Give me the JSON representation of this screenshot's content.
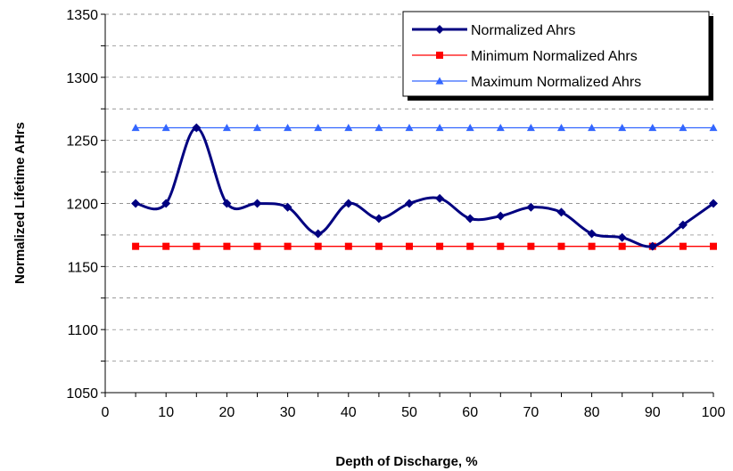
{
  "chart_data": {
    "type": "line",
    "xlabel": "Depth of Discharge, %",
    "ylabel": "Normalized Lifetime AHrs",
    "xlim": [
      0,
      100
    ],
    "ylim": [
      1050,
      1350
    ],
    "x_ticks": [
      0,
      10,
      20,
      30,
      40,
      50,
      60,
      70,
      80,
      90,
      100
    ],
    "y_ticks": [
      1050,
      1100,
      1150,
      1200,
      1250,
      1300,
      1350
    ],
    "grid": "horizontal dashed",
    "legend_position": "top-right",
    "x": [
      5,
      10,
      15,
      20,
      25,
      30,
      35,
      40,
      45,
      50,
      55,
      60,
      65,
      70,
      75,
      80,
      85,
      90,
      95,
      100
    ],
    "series": [
      {
        "name": "Normalized Ahrs",
        "color": "#000080",
        "marker": "diamond",
        "smooth": true,
        "values": [
          1200,
          1200,
          1260,
          1200,
          1200,
          1197,
          1176,
          1200,
          1188,
          1200,
          1204,
          1188,
          1190,
          1197,
          1193,
          1176,
          1173,
          1166,
          1183,
          1200
        ]
      },
      {
        "name": "Minimum Normalized Ahrs",
        "color": "#ff0000",
        "marker": "square",
        "smooth": false,
        "values": [
          1166,
          1166,
          1166,
          1166,
          1166,
          1166,
          1166,
          1166,
          1166,
          1166,
          1166,
          1166,
          1166,
          1166,
          1166,
          1166,
          1166,
          1166,
          1166,
          1166
        ]
      },
      {
        "name": "Maximum Normalized Ahrs",
        "color": "#3366ff",
        "marker": "triangle",
        "smooth": false,
        "values": [
          1260,
          1260,
          1260,
          1260,
          1260,
          1260,
          1260,
          1260,
          1260,
          1260,
          1260,
          1260,
          1260,
          1260,
          1260,
          1260,
          1260,
          1260,
          1260,
          1260
        ]
      }
    ]
  }
}
